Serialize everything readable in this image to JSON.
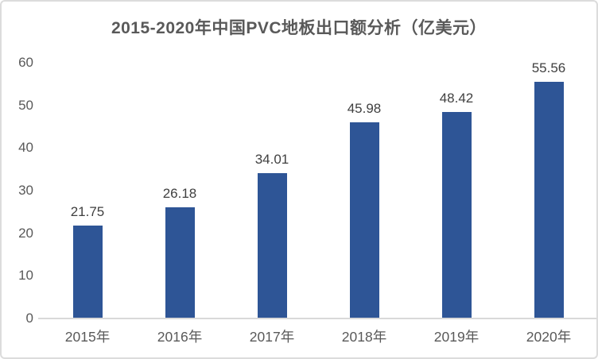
{
  "chart_data": {
    "type": "bar",
    "title": "2015-2020年中国PVC地板出口额分析（亿美元）",
    "categories": [
      "2015年",
      "2016年",
      "2017年",
      "2018年",
      "2019年",
      "2020年"
    ],
    "values": [
      21.75,
      26.18,
      34.01,
      45.98,
      48.42,
      55.56
    ],
    "value_labels": [
      "21.75",
      "26.18",
      "34.01",
      "45.98",
      "48.42",
      "55.56"
    ],
    "yticks": [
      0,
      10,
      20,
      30,
      40,
      50,
      60
    ],
    "ylim": [
      0,
      60
    ],
    "xlabel": "",
    "ylabel": "",
    "grid": false,
    "legend": "none",
    "colors": {
      "bar": "#2E5596",
      "value_label": "#404040",
      "axis_text": "#595959",
      "axis_line": "#D9D9D9",
      "title": "#595959",
      "background": "#FFFFFF",
      "border": "#DCDCDC"
    }
  }
}
